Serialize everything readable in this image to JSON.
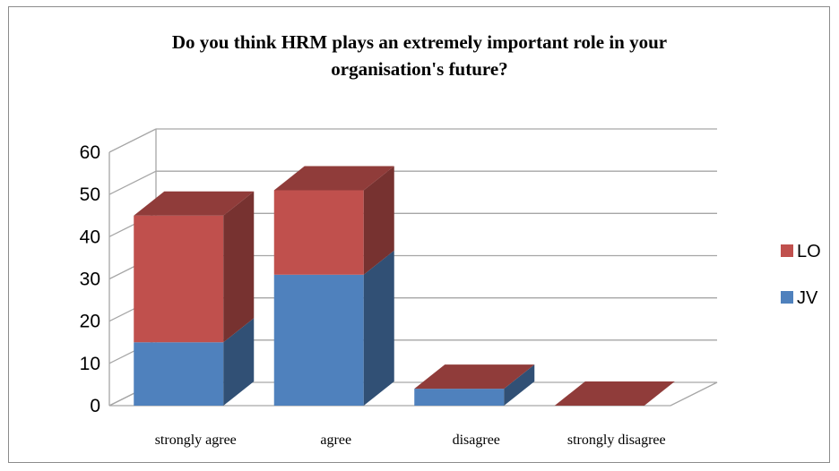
{
  "chart_data": {
    "type": "bar",
    "stacked": true,
    "three_d": true,
    "title": "Do you think HRM plays an extremely important role in your organisation's future?",
    "title_lines": [
      "Do you think HRM plays an extremely important role in your",
      "organisation's future?"
    ],
    "categories": [
      "strongly agree",
      "agree",
      "disagree",
      "strongly disagree"
    ],
    "series": [
      {
        "name": "JV",
        "values": [
          15,
          31,
          4,
          0
        ],
        "color": "#4f81bd"
      },
      {
        "name": "LO",
        "values": [
          30,
          20,
          0,
          0
        ],
        "color": "#c0504d"
      }
    ],
    "ylim": [
      0,
      60
    ],
    "yticks": [
      0,
      10,
      20,
      30,
      40,
      50,
      60
    ],
    "grid": true,
    "legend_position": "right"
  }
}
